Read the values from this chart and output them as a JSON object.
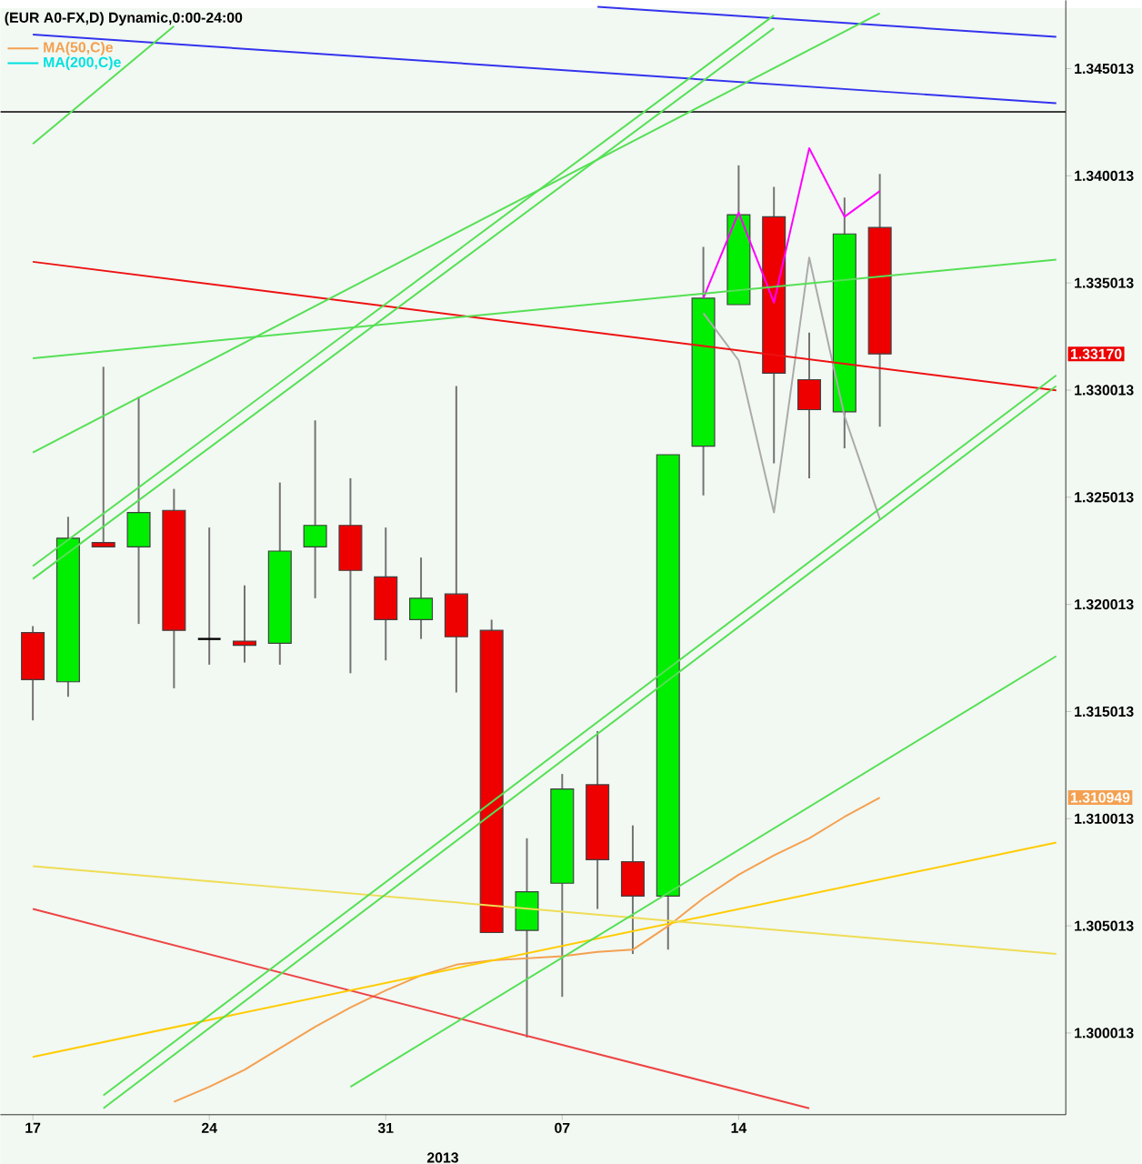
{
  "chart_data": {
    "type": "candlestick",
    "title": "(EUR A0-FX,D) Dynamic,0:00-24:00",
    "categories": [
      "17",
      null,
      null,
      null,
      null,
      "24",
      null,
      null,
      null,
      null,
      "31",
      null,
      null,
      null,
      null,
      "07",
      null,
      null,
      null,
      null,
      "14",
      null,
      null,
      null,
      null,
      null,
      null,
      null,
      null,
      null
    ],
    "ohlc": [
      [
        1.3187,
        1.319,
        1.3146,
        1.3165
      ],
      [
        1.3164,
        1.3241,
        1.3157,
        1.3231
      ],
      [
        1.3229,
        1.3311,
        1.3227,
        1.3227
      ],
      [
        1.3227,
        1.3297,
        1.3191,
        1.3243
      ],
      [
        1.3244,
        1.3254,
        1.3161,
        1.3188
      ],
      [
        1.3184,
        1.3236,
        1.3172,
        1.3184
      ],
      [
        1.3183,
        1.3209,
        1.3173,
        1.3181
      ],
      [
        1.3182,
        1.3257,
        1.3172,
        1.3225
      ],
      [
        1.3227,
        1.3286,
        1.3203,
        1.3237
      ],
      [
        1.3237,
        1.3259,
        1.3168,
        1.3216
      ],
      [
        1.3213,
        1.3236,
        1.3174,
        1.3193
      ],
      [
        1.3193,
        1.3222,
        1.3184,
        1.3203
      ],
      [
        1.3205,
        1.3302,
        1.3159,
        1.3185
      ],
      [
        1.3188,
        1.3193,
        1.3047,
        1.3047
      ],
      [
        1.3048,
        1.3091,
        1.2998,
        1.3066
      ],
      [
        1.307,
        1.3121,
        1.3017,
        1.3114
      ],
      [
        1.3116,
        1.3141,
        1.3058,
        1.3081
      ],
      [
        1.308,
        1.3097,
        1.3037,
        1.3064
      ],
      [
        1.3064,
        1.327,
        1.3039,
        1.327
      ],
      [
        1.3274,
        1.3367,
        1.3251,
        1.3343
      ],
      [
        1.334,
        1.3405,
        1.334,
        1.3382
      ],
      [
        1.3381,
        1.3395,
        1.3266,
        1.3308
      ],
      [
        1.3305,
        1.3327,
        1.3259,
        1.3291
      ],
      [
        1.329,
        1.339,
        1.3273,
        1.3373
      ],
      [
        1.3376,
        1.3401,
        1.3283,
        1.3317
      ],
      null,
      null,
      null,
      null,
      null
    ],
    "series": [
      {
        "type": "line",
        "name": "MA(50,C)e",
        "color": "#f4a050",
        "values": [
          null,
          null,
          null,
          null,
          1.2968,
          1.2975,
          1.2983,
          1.2993,
          1.3003,
          1.3012,
          1.302,
          1.3027,
          1.3032,
          1.3034,
          1.3035,
          1.3036,
          1.3038,
          1.3039,
          1.305,
          1.3063,
          1.3074,
          1.3083,
          1.3091,
          1.3101,
          1.311,
          null,
          null,
          null,
          null,
          null
        ]
      },
      {
        "type": "line",
        "name": "MA(200,C)e",
        "color": "#00e0e0",
        "values": [
          null,
          null,
          null,
          null,
          null,
          null,
          null,
          null,
          null,
          null,
          null,
          null,
          null,
          null,
          null,
          null,
          null,
          null,
          null,
          null,
          null,
          null,
          null,
          null,
          null,
          null,
          null,
          null,
          null,
          null
        ]
      },
      {
        "type": "line",
        "color": "#ff00ff",
        "values": [
          null,
          null,
          null,
          null,
          null,
          null,
          null,
          null,
          null,
          null,
          null,
          null,
          null,
          null,
          null,
          null,
          null,
          null,
          null,
          1.3343,
          1.3383,
          1.3341,
          1.3413,
          1.3381,
          1.3393,
          null,
          null,
          null,
          null,
          null
        ]
      },
      {
        "type": "line",
        "color": "#aaaaaa",
        "values": [
          null,
          null,
          null,
          null,
          null,
          null,
          null,
          null,
          null,
          null,
          null,
          null,
          null,
          null,
          null,
          null,
          null,
          null,
          null,
          1.3336,
          1.3314,
          1.3243,
          1.3362,
          1.3288,
          1.324,
          null,
          null,
          null,
          null,
          null
        ]
      },
      {
        "type": "line",
        "color": "#3333ee",
        "values": [
          null,
          null,
          null,
          null,
          null,
          null,
          null,
          null,
          null,
          null,
          null,
          null,
          null,
          null,
          null,
          null,
          1.3479,
          null,
          null,
          null,
          null,
          null,
          null,
          null,
          null,
          null,
          null,
          null,
          null,
          1.3465
        ]
      },
      {
        "type": "line",
        "color": "#3333ee",
        "values": [
          1.3466,
          null,
          null,
          null,
          null,
          null,
          null,
          null,
          null,
          null,
          null,
          null,
          null,
          null,
          null,
          null,
          null,
          null,
          null,
          null,
          null,
          null,
          null,
          null,
          null,
          null,
          null,
          null,
          null,
          1.3434
        ]
      },
      {
        "type": "line",
        "color": "#ee1111",
        "values": [
          1.336,
          null,
          null,
          null,
          null,
          null,
          null,
          null,
          null,
          null,
          null,
          null,
          null,
          null,
          null,
          null,
          null,
          null,
          null,
          null,
          null,
          null,
          null,
          null,
          null,
          null,
          null,
          null,
          null,
          1.33
        ]
      },
      {
        "type": "line",
        "color": "#ee4444",
        "values": [
          1.3058,
          null,
          null,
          null,
          null,
          null,
          null,
          null,
          null,
          null,
          null,
          null,
          null,
          null,
          null,
          null,
          null,
          null,
          null,
          null,
          null,
          null,
          1.2965,
          null,
          null,
          null,
          null,
          null,
          null,
          null
        ]
      },
      {
        "type": "line",
        "color": "#ffcc00",
        "values": [
          1.2989,
          null,
          null,
          null,
          null,
          null,
          null,
          null,
          null,
          null,
          null,
          null,
          null,
          null,
          null,
          null,
          null,
          null,
          null,
          null,
          null,
          null,
          null,
          null,
          null,
          null,
          null,
          null,
          null,
          1.3089
        ]
      },
      {
        "type": "line",
        "color": "#eedd55",
        "values": [
          1.3078,
          null,
          null,
          null,
          null,
          null,
          null,
          null,
          null,
          null,
          null,
          null,
          null,
          null,
          null,
          null,
          null,
          null,
          null,
          null,
          null,
          null,
          null,
          null,
          null,
          null,
          null,
          null,
          null,
          1.3037
        ]
      },
      {
        "type": "line",
        "color": "#55e055",
        "values": [
          1.3315,
          null,
          null,
          null,
          null,
          null,
          null,
          null,
          null,
          null,
          null,
          null,
          null,
          null,
          null,
          null,
          null,
          null,
          null,
          null,
          null,
          null,
          null,
          null,
          null,
          null,
          null,
          null,
          null,
          1.3361
        ]
      },
      {
        "type": "line",
        "color": "#55e055",
        "values": [
          1.3271,
          null,
          null,
          null,
          null,
          null,
          null,
          null,
          null,
          null,
          null,
          null,
          null,
          null,
          null,
          null,
          null,
          null,
          null,
          null,
          null,
          null,
          null,
          null,
          1.3476,
          null,
          null,
          null,
          null,
          null
        ]
      },
      {
        "type": "line",
        "color": "#55e055",
        "values": [
          1.3218,
          null,
          null,
          null,
          null,
          null,
          null,
          null,
          null,
          null,
          null,
          null,
          null,
          null,
          null,
          null,
          null,
          null,
          null,
          null,
          null,
          1.3475,
          null,
          null,
          null,
          null,
          null,
          null,
          null,
          null
        ]
      },
      {
        "type": "line",
        "color": "#55e055",
        "values": [
          1.3212,
          null,
          null,
          null,
          null,
          null,
          null,
          null,
          null,
          null,
          null,
          null,
          null,
          null,
          null,
          null,
          null,
          null,
          null,
          null,
          null,
          1.3469,
          null,
          null,
          null,
          null,
          null,
          null,
          null,
          null
        ]
      },
      {
        "type": "line",
        "color": "#55e055",
        "values": [
          null,
          null,
          1.2971,
          null,
          null,
          null,
          null,
          null,
          null,
          null,
          null,
          null,
          null,
          null,
          null,
          null,
          null,
          null,
          null,
          null,
          null,
          null,
          null,
          null,
          null,
          null,
          null,
          null,
          null,
          1.3307
        ]
      },
      {
        "type": "line",
        "color": "#55e055",
        "values": [
          null,
          null,
          1.2965,
          null,
          null,
          null,
          null,
          null,
          null,
          null,
          null,
          null,
          null,
          null,
          null,
          null,
          null,
          null,
          null,
          null,
          null,
          null,
          null,
          null,
          null,
          null,
          null,
          null,
          null,
          1.3302
        ]
      },
      {
        "type": "line",
        "color": "#55e055",
        "values": [
          null,
          null,
          null,
          null,
          null,
          null,
          null,
          null,
          null,
          1.2975,
          null,
          null,
          null,
          null,
          null,
          null,
          null,
          null,
          null,
          null,
          null,
          null,
          null,
          null,
          null,
          null,
          null,
          null,
          null,
          1.3176
        ]
      },
      {
        "type": "line",
        "color": "#55e055",
        "values": [
          1.3415,
          null,
          null,
          null,
          1.347,
          null,
          null,
          null,
          null,
          null,
          null,
          null,
          null,
          null,
          null,
          null,
          null,
          null,
          null,
          null,
          null,
          null,
          null,
          null,
          null,
          null,
          null,
          null,
          null,
          null
        ]
      }
    ],
    "ref_lines": [
      {
        "axis": "y",
        "value": 1.343,
        "color": "#000000"
      }
    ],
    "annotations": [
      "1.33170",
      "1.310949",
      "2013"
    ],
    "ylim": [
      1.2962,
      1.3482
    ],
    "yticks": [
      1.300013,
      1.305013,
      1.310013,
      1.315013,
      1.320013,
      1.325013,
      1.330013,
      1.335013,
      1.340013,
      1.345013
    ],
    "legend": "top left"
  }
}
